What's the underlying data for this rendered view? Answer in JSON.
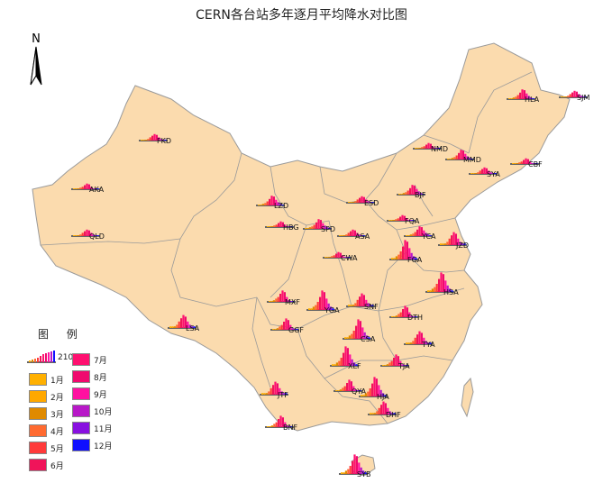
{
  "title": "CERN各台站多年逐月平均降水对比图",
  "north_label": "N",
  "legend": {
    "title": "图 例",
    "scale_value": "210",
    "months": [
      {
        "label": "1月",
        "color": "#FFB000"
      },
      {
        "label": "2月",
        "color": "#FFA800"
      },
      {
        "label": "3月",
        "color": "#E08A00"
      },
      {
        "label": "4月",
        "color": "#FF6A30"
      },
      {
        "label": "5月",
        "color": "#FF3A3A"
      },
      {
        "label": "6月",
        "color": "#F0145A"
      },
      {
        "label": "7月",
        "color": "#FF1070"
      },
      {
        "label": "8月",
        "color": "#F00A6E"
      },
      {
        "label": "9月",
        "color": "#FF10A0"
      },
      {
        "label": "10月",
        "color": "#B818C8"
      },
      {
        "label": "11月",
        "color": "#8810E0"
      },
      {
        "label": "12月",
        "color": "#1010FF"
      }
    ]
  },
  "colors": {
    "land": "#FBDBAE",
    "border": "#9a9a9a",
    "sea": "#ffffff"
  },
  "stations": [
    "HLA",
    "SJM",
    "NMD",
    "MMD",
    "SYA",
    "CBF",
    "BJF",
    "FKD",
    "AKA",
    "LZD",
    "ESD",
    "FQA",
    "YCA",
    "QLD",
    "HBG",
    "SPD",
    "ASA",
    "CWA",
    "FGA",
    "JZD",
    "MXF",
    "YGA",
    "SNF",
    "DTH",
    "HSA",
    "LSA",
    "GGF",
    "CSA",
    "TYA",
    "TJA",
    "XLF",
    "JTF",
    "QYA",
    "HJA",
    "DHF",
    "XLF",
    "BFF",
    "SYB",
    "BNF",
    "SYB"
  ],
  "station_labels": [
    "HLA",
    "SJM",
    "NMD",
    "MMD",
    "SYA",
    "CBF",
    "BJF",
    "FKD",
    "AKA",
    "LZD",
    "ESD",
    "FQA",
    "YCA",
    "QLD",
    "HBG",
    "SPD",
    "ASA",
    "CWA",
    "FGA",
    "JZD",
    "MXF",
    "YGA",
    "SNF",
    "DTH",
    "HSA",
    "LSA",
    "GGF",
    "CSA",
    "TYA",
    "TJA",
    "XLF",
    "JTF",
    "QYA",
    "HJA",
    "DHF",
    "BNF",
    "SYB"
  ]
}
